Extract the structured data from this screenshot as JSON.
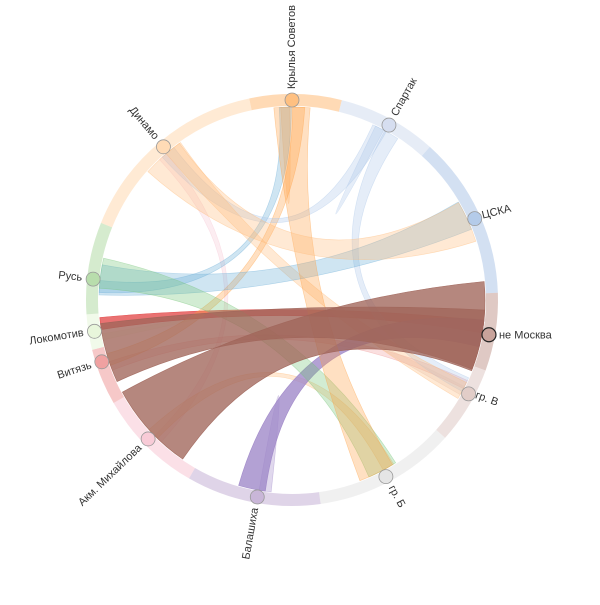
{
  "chart_data": {
    "type": "chord",
    "nodes": [
      {
        "label": "Крылья Советов",
        "color": "#ffbb78"
      },
      {
        "label": "Спартак",
        "color": "#d2dcef"
      },
      {
        "label": "ЦСКА",
        "color": "#aec7e8"
      },
      {
        "label": "не Москва",
        "color": "#c49c94"
      },
      {
        "label": "гр. В",
        "color": "#dfc9c4"
      },
      {
        "label": "гр. Б",
        "color": "#e3e3e3"
      },
      {
        "label": "Балашиха",
        "color": "#c5b0d5"
      },
      {
        "label": "Акм. Михайлова",
        "color": "#f7c7d4"
      },
      {
        "label": "Витязь",
        "color": "#ef9a9a"
      },
      {
        "label": "Локомотив",
        "color": "#e6f5d8"
      },
      {
        "label": "Русь",
        "color": "#b3dba6"
      },
      {
        "label": "Динамо",
        "color": "#ffd8b0"
      }
    ],
    "highlighted_node": "не Москва",
    "links": [
      {
        "source": "Витязь",
        "target": "не Москва",
        "weight": 20,
        "color": "#a0655a"
      },
      {
        "source": "Акм. Михайлова",
        "target": "не Москва",
        "weight": 30,
        "color": "#a0655a"
      },
      {
        "source": "Динамо",
        "target": "ЦСКА",
        "weight": 14,
        "color": "#ffbb78"
      },
      {
        "source": "Крылья Советов",
        "target": "гр. Б",
        "weight": 12,
        "color": "#ff9f40"
      },
      {
        "source": "Русь",
        "target": "ЦСКА",
        "weight": 10,
        "color": "#6baed6"
      },
      {
        "source": "Русь",
        "target": "гр. Б",
        "weight": 10,
        "color": "#74c476"
      },
      {
        "source": "Балашиха",
        "target": "не Москва",
        "weight": 9,
        "color": "#9e86c8"
      },
      {
        "source": "Локомотив",
        "target": "не Москва",
        "weight": 4,
        "color": "#e34a4a"
      },
      {
        "source": "Спартак",
        "target": "гр. В",
        "weight": 5,
        "color": "#aec7e8"
      },
      {
        "source": "Динамо",
        "target": "Спартак",
        "weight": 5,
        "color": "#aec7e8"
      },
      {
        "source": "Крылья Советов",
        "target": "Витязь",
        "weight": 4,
        "color": "#ff9f40"
      },
      {
        "source": "Динамо",
        "target": "гр. В",
        "weight": 6,
        "color": "#ffbb78"
      },
      {
        "source": "Акм. Михайлова",
        "target": "гр. Б",
        "weight": 4,
        "color": "#ffbb78"
      },
      {
        "source": "Русь",
        "target": "Крылья Советов",
        "weight": 4,
        "color": "#6baed6"
      },
      {
        "source": "Акм. Михайлова",
        "target": "Динамо",
        "weight": 3,
        "color": "#f7c7d4"
      },
      {
        "source": "гр. В",
        "target": "Витязь",
        "weight": 3,
        "color": "#ef9a9a"
      },
      {
        "source": "Балашиха",
        "target": "Балашиха",
        "weight": 4,
        "color": "#9e86c8"
      },
      {
        "source": "Спартак",
        "target": "Спартак",
        "weight": 3,
        "color": "#aec7e8"
      },
      {
        "source": "гр. В",
        "target": "гр. В",
        "weight": 3,
        "color": "#dfc9c4"
      },
      {
        "source": "Локомотив",
        "target": "Локомотив",
        "weight": 2,
        "color": "#e6f5d8"
      },
      {
        "source": "Крылья Советов",
        "target": "Крылья Советов",
        "weight": 3,
        "color": "#ffbb78"
      }
    ]
  }
}
